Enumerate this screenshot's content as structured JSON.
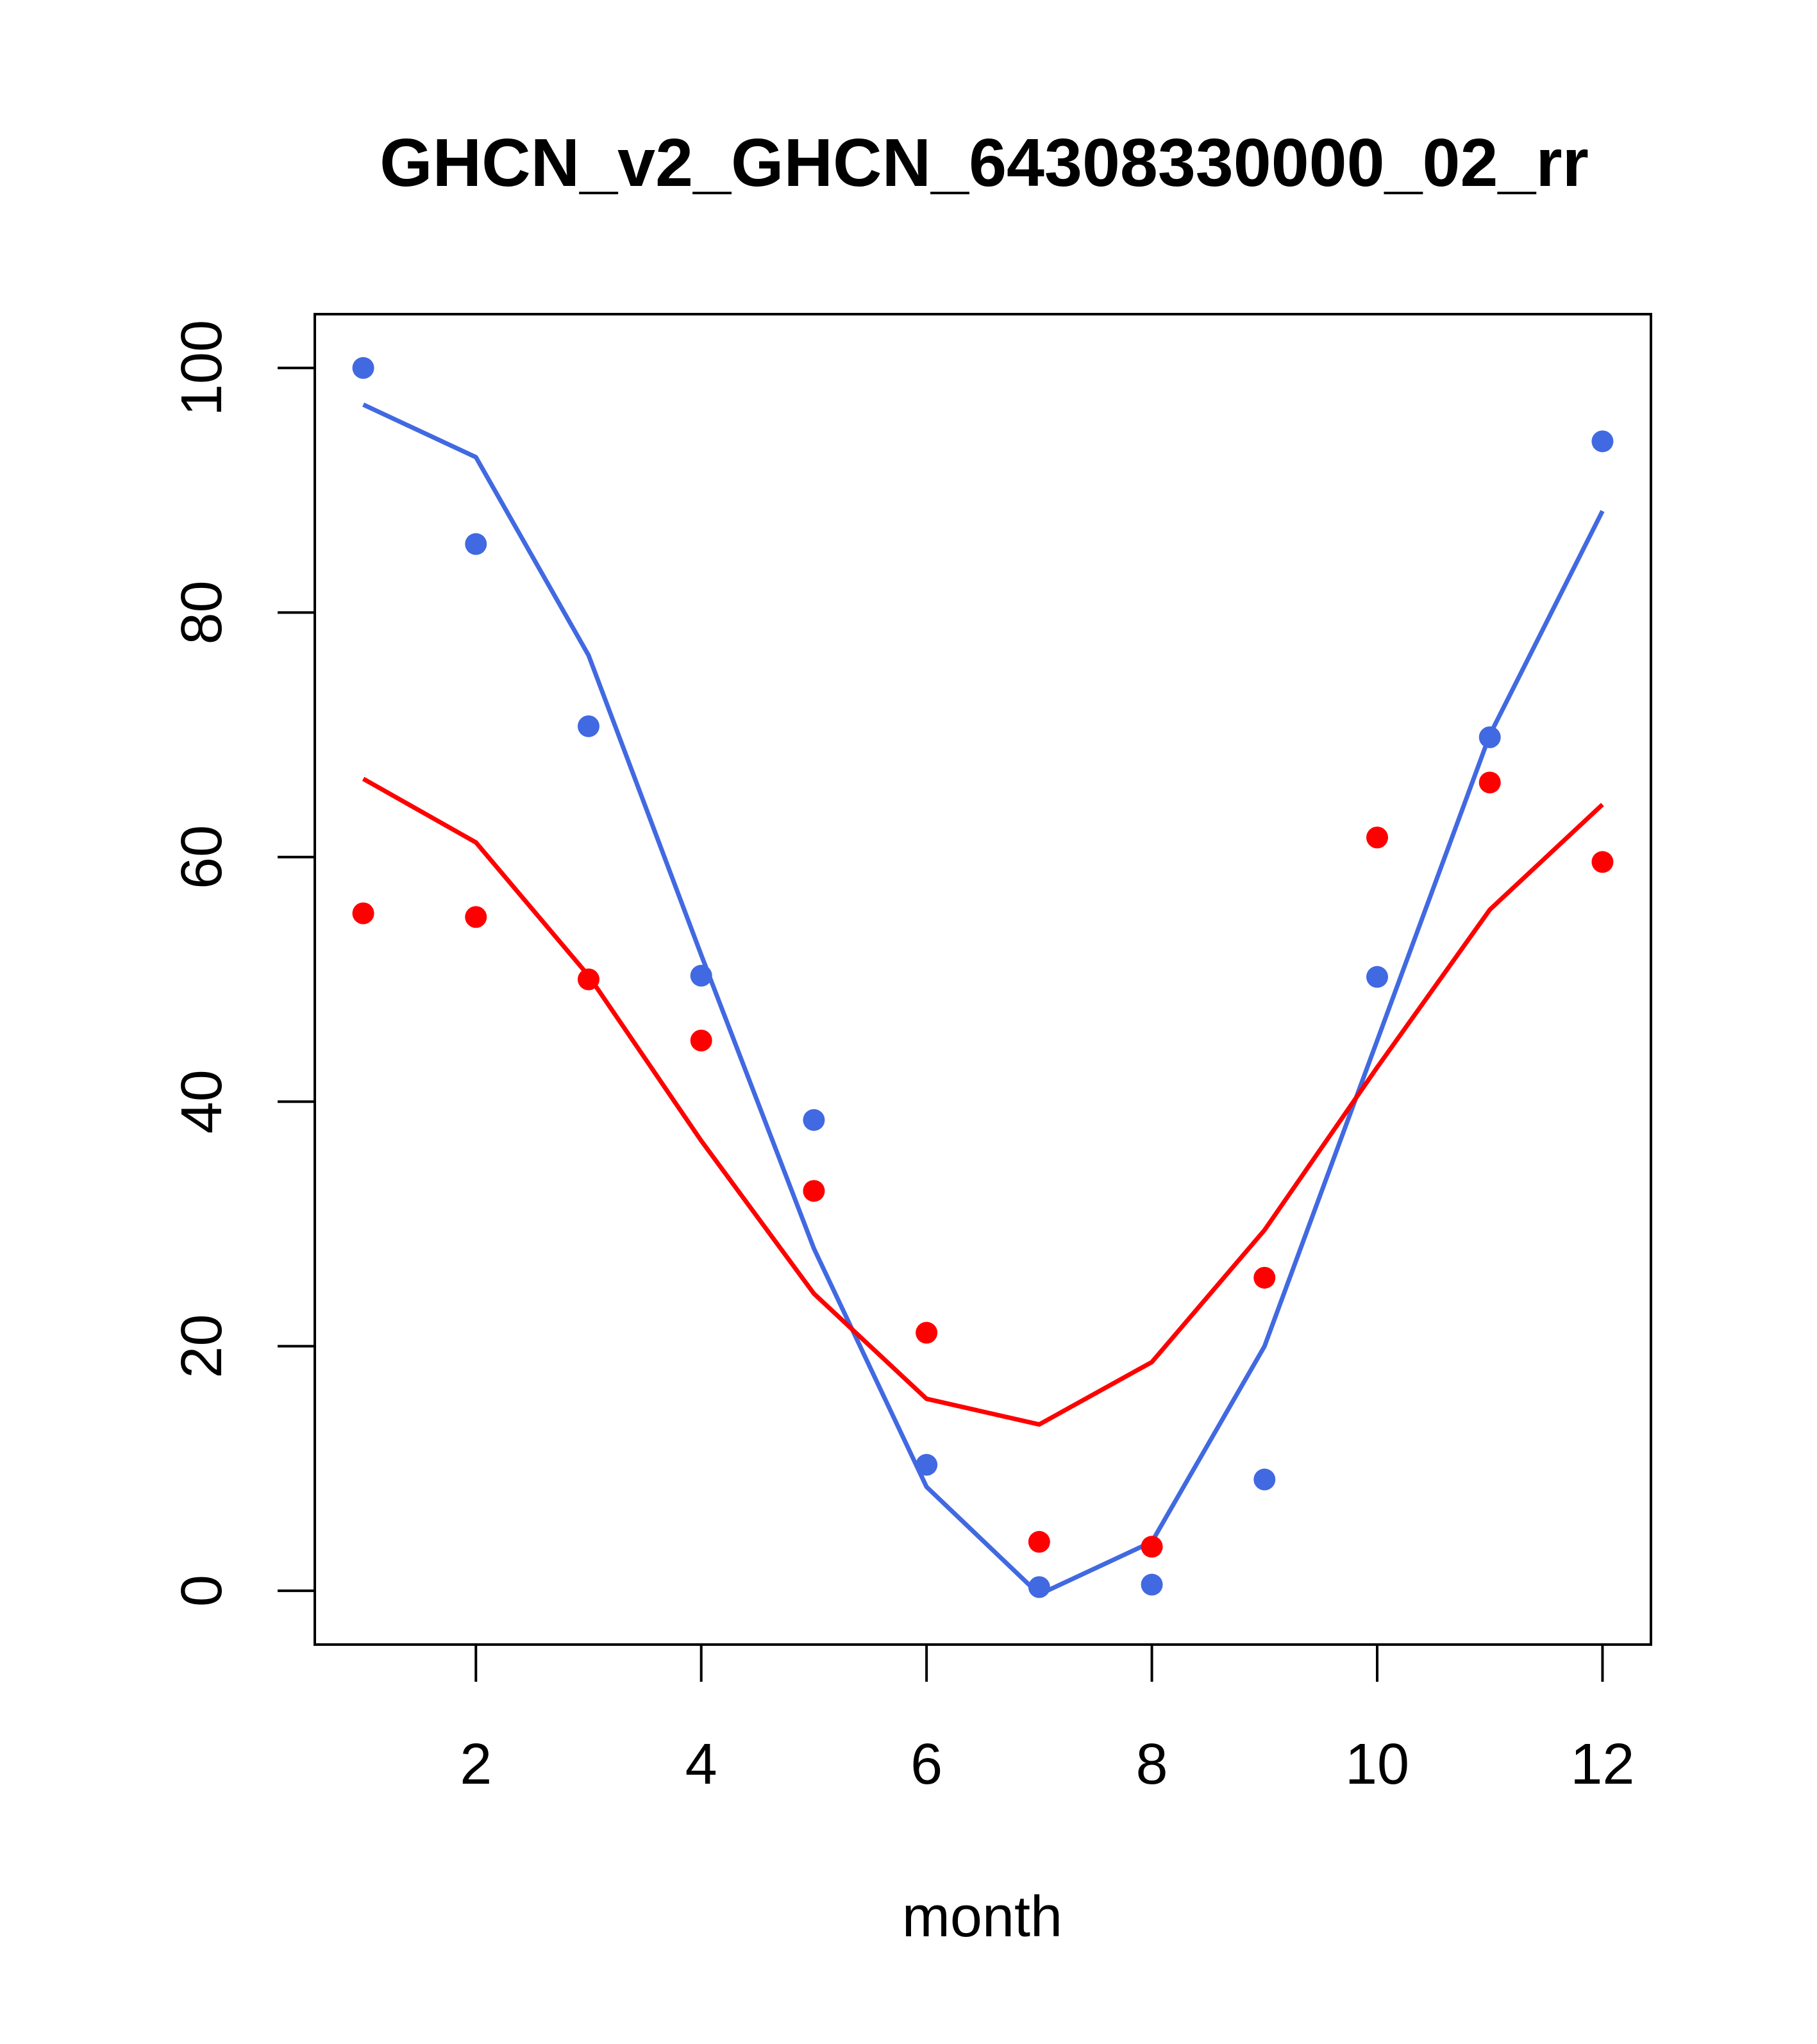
{
  "chart_data": {
    "type": "line",
    "title": "GHCN_v2_GHCN_64308330000_02_rr",
    "xlabel": "month",
    "ylabel": "",
    "xlim": [
      0.57,
      12.43
    ],
    "ylim": [
      -4.4,
      104.4
    ],
    "x_ticks": [
      2,
      4,
      6,
      8,
      10,
      12
    ],
    "y_ticks": [
      0,
      20,
      40,
      60,
      80,
      100
    ],
    "x_tick_labels": [
      "2",
      "4",
      "6",
      "8",
      "10",
      "12"
    ],
    "y_tick_labels": [
      "0",
      "20",
      "40",
      "60",
      "80",
      "100"
    ],
    "grid": false,
    "x": [
      1,
      2,
      3,
      4,
      5,
      6,
      7,
      8,
      9,
      10,
      11,
      12
    ],
    "series": [
      {
        "color": "#4169e1",
        "points": [
          100.0,
          85.6,
          70.7,
          50.3,
          38.5,
          10.3,
          0.3,
          0.5,
          9.1,
          50.2,
          69.8,
          94.0
        ],
        "line": [
          97.0,
          92.7,
          76.5,
          52.0,
          28.0,
          8.5,
          -0.3,
          4.0,
          20.0,
          45.0,
          70.0,
          88.3
        ]
      },
      {
        "color": "#ff0000",
        "points": [
          55.4,
          55.1,
          50.0,
          45.0,
          32.7,
          21.1,
          4.0,
          3.6,
          25.6,
          61.6,
          66.1,
          59.6
        ],
        "line": [
          66.4,
          61.2,
          50.3,
          36.8,
          24.3,
          15.7,
          13.6,
          18.7,
          29.5,
          42.8,
          55.7,
          64.3
        ]
      }
    ]
  }
}
